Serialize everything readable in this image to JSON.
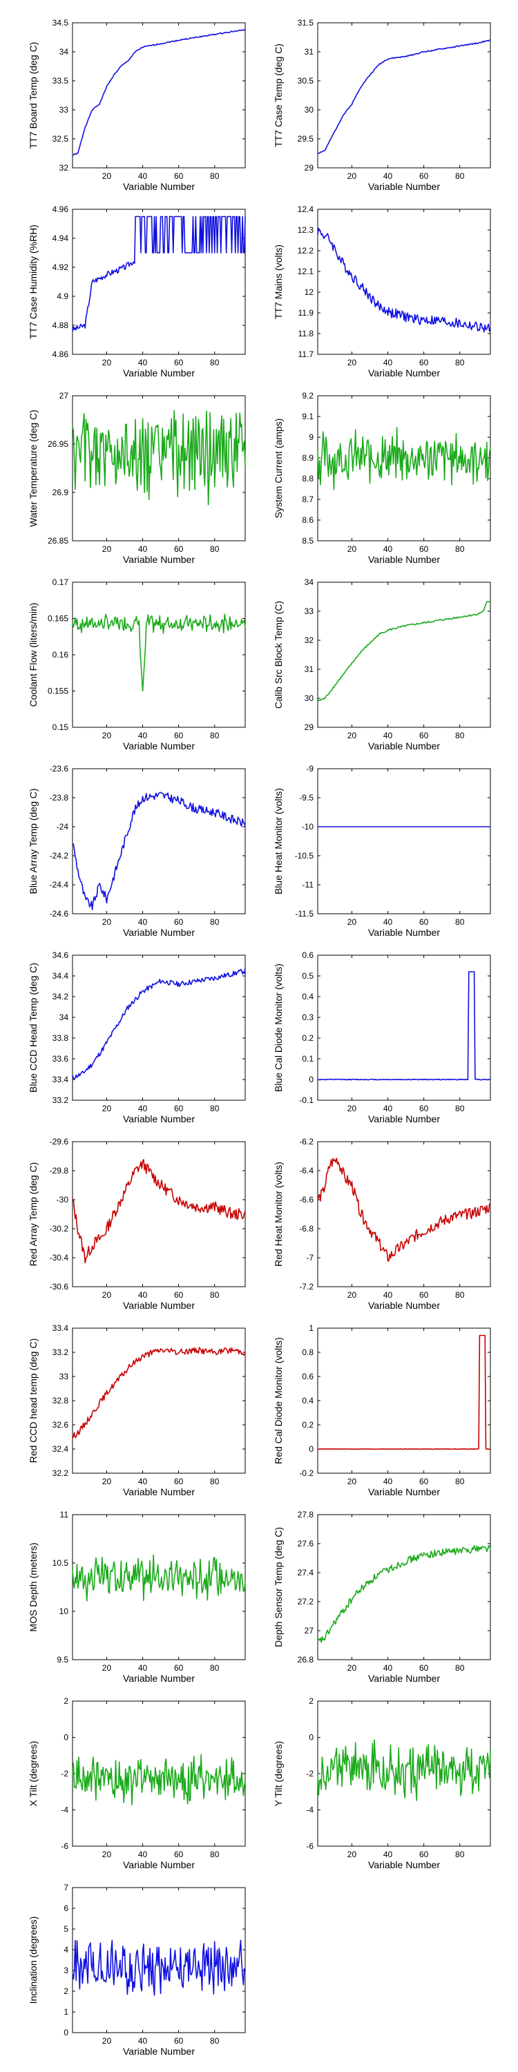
{
  "colors": {
    "blue": "#1010e0",
    "green": "#1aaa1a",
    "red": "#c80000"
  },
  "chart_data": [
    {
      "type": "line",
      "ylabel": "TT7 Board Temp (deg C)",
      "xlabel": "",
      "ylim": [
        32,
        34.5
      ],
      "yticks": [
        "32",
        "32.5",
        "33",
        "33.5",
        "34",
        "34.5"
      ],
      "xticks": [
        "20",
        "40",
        "60",
        "80"
      ],
      "xlim": [
        1,
        97
      ],
      "color": "blue",
      "kind": "trend",
      "knots": [
        [
          1,
          32.22
        ],
        [
          4,
          32.25
        ],
        [
          8,
          32.7
        ],
        [
          12,
          33.0
        ],
        [
          16,
          33.1
        ],
        [
          20,
          33.4
        ],
        [
          24,
          33.6
        ],
        [
          28,
          33.75
        ],
        [
          32,
          33.85
        ],
        [
          36,
          34.0
        ],
        [
          40,
          34.08
        ],
        [
          50,
          34.14
        ],
        [
          60,
          34.2
        ],
        [
          70,
          34.25
        ],
        [
          80,
          34.3
        ],
        [
          90,
          34.35
        ],
        [
          97,
          34.38
        ]
      ],
      "noise": 0.01,
      "seed": 1
    },
    {
      "type": "line",
      "ylabel": "TT7 Case Temp (deg C)",
      "xlabel": "",
      "ylim": [
        29,
        31.5
      ],
      "yticks": [
        "29",
        "29.5",
        "30",
        "30.5",
        "31",
        "31.5"
      ],
      "xticks": [
        "20",
        "40",
        "60",
        "80"
      ],
      "xlim": [
        1,
        97
      ],
      "color": "blue",
      "kind": "trend",
      "knots": [
        [
          1,
          29.25
        ],
        [
          5,
          29.3
        ],
        [
          10,
          29.6
        ],
        [
          15,
          29.9
        ],
        [
          20,
          30.1
        ],
        [
          25,
          30.4
        ],
        [
          30,
          30.6
        ],
        [
          35,
          30.78
        ],
        [
          40,
          30.88
        ],
        [
          50,
          30.92
        ],
        [
          60,
          31.0
        ],
        [
          70,
          31.05
        ],
        [
          80,
          31.1
        ],
        [
          90,
          31.15
        ],
        [
          97,
          31.2
        ]
      ],
      "noise": 0.01,
      "seed": 2
    },
    {
      "type": "line",
      "ylabel": "TT7 Case Humidity (%RH)",
      "xlabel": "",
      "ylim": [
        4.86,
        4.96
      ],
      "yticks": [
        "4.86",
        "4.88",
        "4.9",
        "4.92",
        "4.94",
        "4.96"
      ],
      "xticks": [
        "20",
        "40",
        "60",
        "80"
      ],
      "xlim": [
        1,
        97
      ],
      "color": "blue",
      "kind": "binary",
      "knots": [
        [
          1,
          4.877
        ],
        [
          8,
          4.88
        ],
        [
          12,
          4.91
        ],
        [
          20,
          4.915
        ],
        [
          30,
          4.92
        ],
        [
          36,
          4.925
        ]
      ],
      "start": 36,
      "low": 4.93,
      "high": 4.955,
      "seed": 3
    },
    {
      "type": "line",
      "ylabel": "TT7 Mains  (volts)",
      "xlabel": "",
      "ylim": [
        11.7,
        12.4
      ],
      "yticks": [
        "11.7",
        "11.8",
        "11.9",
        "12",
        "12.1",
        "12.2",
        "12.3",
        "12.4"
      ],
      "xticks": [
        "20",
        "40",
        "60",
        "80"
      ],
      "xlim": [
        1,
        97
      ],
      "color": "blue",
      "kind": "trend",
      "knots": [
        [
          1,
          12.3
        ],
        [
          8,
          12.25
        ],
        [
          14,
          12.15
        ],
        [
          20,
          12.08
        ],
        [
          28,
          12.0
        ],
        [
          35,
          11.93
        ],
        [
          42,
          11.9
        ],
        [
          55,
          11.87
        ],
        [
          70,
          11.86
        ],
        [
          85,
          11.84
        ],
        [
          97,
          11.82
        ]
      ],
      "noise": 0.025,
      "seed": 4
    },
    {
      "type": "line",
      "ylabel": "Water Temperature (deg C)",
      "xlabel": "",
      "ylim": [
        26.85,
        27
      ],
      "yticks": [
        "26.85",
        "26.9",
        "26.95",
        "27"
      ],
      "xticks": [
        "20",
        "40",
        "60",
        "80"
      ],
      "xlim": [
        1,
        97
      ],
      "color": "green",
      "kind": "noise",
      "mean": 26.94,
      "amp": 0.045,
      "seed": 5
    },
    {
      "type": "line",
      "ylabel": "System Current (amps)",
      "xlabel": "",
      "ylim": [
        8.5,
        9.2
      ],
      "yticks": [
        "8.5",
        "8.6",
        "8.7",
        "8.8",
        "8.9",
        "9",
        "9.1",
        "9.2"
      ],
      "xticks": [
        "20",
        "40",
        "60",
        "80"
      ],
      "xlim": [
        1,
        97
      ],
      "color": "green",
      "kind": "noise",
      "mean": 8.9,
      "amp": 0.13,
      "seed": 6
    },
    {
      "type": "line",
      "ylabel": "Coolant Flow (liters/min)",
      "xlabel": "",
      "ylim": [
        0.15,
        0.17
      ],
      "yticks": [
        "0.15",
        "0.155",
        "0.16",
        "0.165",
        "0.17"
      ],
      "xticks": [
        "20",
        "40",
        "60",
        "80"
      ],
      "xlim": [
        1,
        97
      ],
      "color": "green",
      "kind": "noise",
      "mean": 0.1643,
      "amp": 0.0012,
      "dip": [
        40,
        0.155
      ],
      "seed": 7
    },
    {
      "type": "line",
      "ylabel": "Calib Src Block Temp (C)",
      "xlabel": "",
      "ylim": [
        29,
        34
      ],
      "yticks": [
        "29",
        "30",
        "31",
        "32",
        "33",
        "34"
      ],
      "xticks": [
        "20",
        "40",
        "60",
        "80"
      ],
      "xlim": [
        1,
        97
      ],
      "color": "green",
      "kind": "trend",
      "knots": [
        [
          1,
          29.9
        ],
        [
          5,
          30.0
        ],
        [
          10,
          30.4
        ],
        [
          15,
          30.8
        ],
        [
          20,
          31.2
        ],
        [
          25,
          31.6
        ],
        [
          30,
          31.9
        ],
        [
          35,
          32.2
        ],
        [
          40,
          32.35
        ],
        [
          50,
          32.5
        ],
        [
          60,
          32.6
        ],
        [
          70,
          32.7
        ],
        [
          80,
          32.8
        ],
        [
          90,
          32.9
        ],
        [
          93,
          33.0
        ],
        [
          95,
          33.3
        ],
        [
          97,
          33.35
        ]
      ],
      "noise": 0.03,
      "seed": 8
    },
    {
      "type": "line",
      "ylabel": "Blue Array Temp (deg C)",
      "xlabel": "",
      "ylim": [
        -24.6,
        -23.6
      ],
      "yticks": [
        "-24.6",
        "-24.4",
        "-24.2",
        "-24",
        "-23.8",
        "-23.6"
      ],
      "xticks": [
        "20",
        "40",
        "60",
        "80"
      ],
      "xlim": [
        1,
        97
      ],
      "color": "blue",
      "kind": "trend",
      "knots": [
        [
          1,
          -24.1
        ],
        [
          4,
          -24.3
        ],
        [
          8,
          -24.5
        ],
        [
          12,
          -24.55
        ],
        [
          16,
          -24.4
        ],
        [
          20,
          -24.5
        ],
        [
          25,
          -24.3
        ],
        [
          30,
          -24.1
        ],
        [
          35,
          -23.9
        ],
        [
          40,
          -23.8
        ],
        [
          50,
          -23.78
        ],
        [
          60,
          -23.82
        ],
        [
          70,
          -23.88
        ],
        [
          80,
          -23.9
        ],
        [
          90,
          -23.95
        ],
        [
          97,
          -23.98
        ]
      ],
      "noise": 0.03,
      "seed": 9
    },
    {
      "type": "line",
      "ylabel": "Blue Heat Monitor (volts)",
      "xlabel": "",
      "ylim": [
        -11.5,
        -9
      ],
      "yticks": [
        "-11.5",
        "-11",
        "-10.5",
        "-10",
        "-9.5",
        "-9"
      ],
      "xticks": [
        "20",
        "40",
        "60",
        "80"
      ],
      "xlim": [
        1,
        97
      ],
      "color": "blue",
      "kind": "trend",
      "knots": [
        [
          1,
          -10
        ],
        [
          97,
          -10
        ]
      ],
      "noise": 0,
      "seed": 10
    },
    {
      "type": "line",
      "ylabel": "Blue CCD Head Temp (deg C)",
      "xlabel": "",
      "ylim": [
        33.2,
        34.6
      ],
      "yticks": [
        "33.2",
        "33.4",
        "33.6",
        "33.8",
        "34",
        "34.2",
        "34.4",
        "34.6"
      ],
      "xticks": [
        "20",
        "40",
        "60",
        "80"
      ],
      "xlim": [
        1,
        97
      ],
      "color": "blue",
      "kind": "trend",
      "knots": [
        [
          1,
          33.42
        ],
        [
          6,
          33.45
        ],
        [
          12,
          33.55
        ],
        [
          18,
          33.7
        ],
        [
          25,
          33.9
        ],
        [
          32,
          34.1
        ],
        [
          40,
          34.25
        ],
        [
          50,
          34.35
        ],
        [
          60,
          34.32
        ],
        [
          70,
          34.35
        ],
        [
          80,
          34.38
        ],
        [
          90,
          34.42
        ],
        [
          97,
          34.45
        ]
      ],
      "noise": 0.025,
      "seed": 11
    },
    {
      "type": "line",
      "ylabel": "Blue Cal Diode Monitor (volts)",
      "xlabel": "",
      "ylim": [
        -0.1,
        0.6
      ],
      "yticks": [
        "-0.1",
        "0",
        "0.1",
        "0.2",
        "0.3",
        "0.4",
        "0.5",
        "0.6"
      ],
      "xticks": [
        "20",
        "40",
        "60",
        "80"
      ],
      "xlim": [
        1,
        97
      ],
      "color": "blue",
      "kind": "pulse",
      "base": 0,
      "peak": 0.52,
      "pulse": [
        85,
        88
      ],
      "seed": 12
    },
    {
      "type": "line",
      "ylabel": "Red Array Temp (deg C)",
      "xlabel": "",
      "ylim": [
        -30.6,
        -29.6
      ],
      "yticks": [
        "-30.6",
        "-30.4",
        "-30.2",
        "-30",
        "-29.8",
        "-29.6"
      ],
      "xticks": [
        "20",
        "40",
        "60",
        "80"
      ],
      "xlim": [
        1,
        97
      ],
      "color": "red",
      "kind": "trend",
      "knots": [
        [
          1,
          -30.0
        ],
        [
          4,
          -30.2
        ],
        [
          8,
          -30.4
        ],
        [
          13,
          -30.3
        ],
        [
          18,
          -30.25
        ],
        [
          24,
          -30.1
        ],
        [
          30,
          -29.95
        ],
        [
          36,
          -29.8
        ],
        [
          40,
          -29.75
        ],
        [
          50,
          -29.9
        ],
        [
          60,
          -30.0
        ],
        [
          70,
          -30.05
        ],
        [
          80,
          -30.05
        ],
        [
          90,
          -30.1
        ],
        [
          97,
          -30.1
        ]
      ],
      "noise": 0.04,
      "seed": 13
    },
    {
      "type": "line",
      "ylabel": "Red Heat Monitor (volts)",
      "xlabel": "",
      "ylim": [
        -7.2,
        -6.2
      ],
      "yticks": [
        "-7.2",
        "-7",
        "-6.8",
        "-6.6",
        "-6.4",
        "-6.2"
      ],
      "xticks": [
        "20",
        "40",
        "60",
        "80"
      ],
      "xlim": [
        1,
        97
      ],
      "color": "red",
      "kind": "trend",
      "knots": [
        [
          1,
          -6.6
        ],
        [
          4,
          -6.55
        ],
        [
          8,
          -6.35
        ],
        [
          12,
          -6.32
        ],
        [
          16,
          -6.45
        ],
        [
          20,
          -6.5
        ],
        [
          25,
          -6.7
        ],
        [
          30,
          -6.8
        ],
        [
          35,
          -6.9
        ],
        [
          40,
          -7.0
        ],
        [
          45,
          -6.95
        ],
        [
          55,
          -6.85
        ],
        [
          65,
          -6.78
        ],
        [
          75,
          -6.72
        ],
        [
          85,
          -6.7
        ],
        [
          97,
          -6.65
        ]
      ],
      "noise": 0.04,
      "seed": 14
    },
    {
      "type": "line",
      "ylabel": "Red CCD head temp (deg C)",
      "xlabel": "",
      "ylim": [
        32.2,
        33.4
      ],
      "yticks": [
        "32.2",
        "32.4",
        "32.6",
        "32.8",
        "33",
        "33.2",
        "33.4"
      ],
      "xticks": [
        "20",
        "40",
        "60",
        "80"
      ],
      "xlim": [
        1,
        97
      ],
      "color": "red",
      "kind": "trend",
      "knots": [
        [
          1,
          32.5
        ],
        [
          5,
          32.55
        ],
        [
          10,
          32.65
        ],
        [
          16,
          32.78
        ],
        [
          22,
          32.9
        ],
        [
          28,
          33.0
        ],
        [
          34,
          33.1
        ],
        [
          40,
          33.17
        ],
        [
          50,
          33.22
        ],
        [
          60,
          33.2
        ],
        [
          70,
          33.22
        ],
        [
          80,
          33.2
        ],
        [
          90,
          33.22
        ],
        [
          97,
          33.2
        ]
      ],
      "noise": 0.025,
      "seed": 15
    },
    {
      "type": "line",
      "ylabel": "Red Cal Diode Monitor (volts)",
      "xlabel": "",
      "ylim": [
        -0.2,
        1
      ],
      "yticks": [
        "-0.2",
        "0",
        "0.2",
        "0.4",
        "0.6",
        "0.8",
        "1"
      ],
      "xticks": [
        "20",
        "40",
        "60",
        "80"
      ],
      "xlim": [
        1,
        97
      ],
      "color": "red",
      "kind": "pulse",
      "base": 0,
      "peak": 0.94,
      "pulse": [
        91,
        94
      ],
      "seed": 16
    },
    {
      "type": "line",
      "ylabel": "MOS Depth  (meters)",
      "xlabel": "",
      "ylim": [
        9.5,
        11
      ],
      "yticks": [
        "9.5",
        "10",
        "10.5",
        "11"
      ],
      "xticks": [
        "20",
        "40",
        "60",
        "80"
      ],
      "xlim": [
        1,
        97
      ],
      "color": "green",
      "kind": "noise",
      "mean": 10.35,
      "amp": 0.22,
      "seed": 17
    },
    {
      "type": "line",
      "ylabel": "Depth Sensor Temp (deg C)",
      "xlabel": "",
      "ylim": [
        26.8,
        27.8
      ],
      "yticks": [
        "26.8",
        "27",
        "27.2",
        "27.4",
        "27.6",
        "27.8"
      ],
      "xticks": [
        "20",
        "40",
        "60",
        "80"
      ],
      "xlim": [
        1,
        97
      ],
      "color": "green",
      "kind": "trend",
      "knots": [
        [
          1,
          26.92
        ],
        [
          5,
          26.95
        ],
        [
          10,
          27.05
        ],
        [
          16,
          27.15
        ],
        [
          22,
          27.25
        ],
        [
          28,
          27.32
        ],
        [
          34,
          27.38
        ],
        [
          40,
          27.42
        ],
        [
          50,
          27.48
        ],
        [
          60,
          27.52
        ],
        [
          70,
          27.54
        ],
        [
          80,
          27.55
        ],
        [
          90,
          27.57
        ],
        [
          97,
          27.57
        ]
      ],
      "noise": 0.025,
      "seed": 18
    },
    {
      "type": "line",
      "ylabel": "X Tilt  (degrees)",
      "xlabel": "",
      "ylim": [
        -6,
        2
      ],
      "yticks": [
        "-6",
        "-4",
        "-2",
        "0",
        "2"
      ],
      "xticks": [
        "20",
        "40",
        "60",
        "80"
      ],
      "xlim": [
        1,
        97
      ],
      "color": "green",
      "kind": "noise",
      "mean": -2.3,
      "amp": 1.3,
      "seed": 19
    },
    {
      "type": "line",
      "ylabel": "Y Tilt  (degrees)",
      "xlabel": "",
      "ylim": [
        -6,
        2
      ],
      "yticks": [
        "-6",
        "-4",
        "-2",
        "0",
        "2"
      ],
      "xticks": [
        "20",
        "40",
        "60",
        "80"
      ],
      "xlim": [
        1,
        97
      ],
      "color": "green",
      "kind": "noise",
      "mean": -1.8,
      "amp": 1.5,
      "seed": 20
    },
    {
      "type": "line",
      "ylabel": "Inclination  (degrees)",
      "xlabel": "",
      "ylim": [
        0,
        7
      ],
      "yticks": [
        "0",
        "1",
        "2",
        "3",
        "4",
        "5",
        "6",
        "7"
      ],
      "xticks": [
        "20",
        "40",
        "60",
        "80"
      ],
      "xlim": [
        1,
        97
      ],
      "color": "blue",
      "kind": "noise",
      "mean": 3.2,
      "amp": 1.3,
      "seed": 21
    }
  ],
  "x_axis_title": "Variable Number"
}
